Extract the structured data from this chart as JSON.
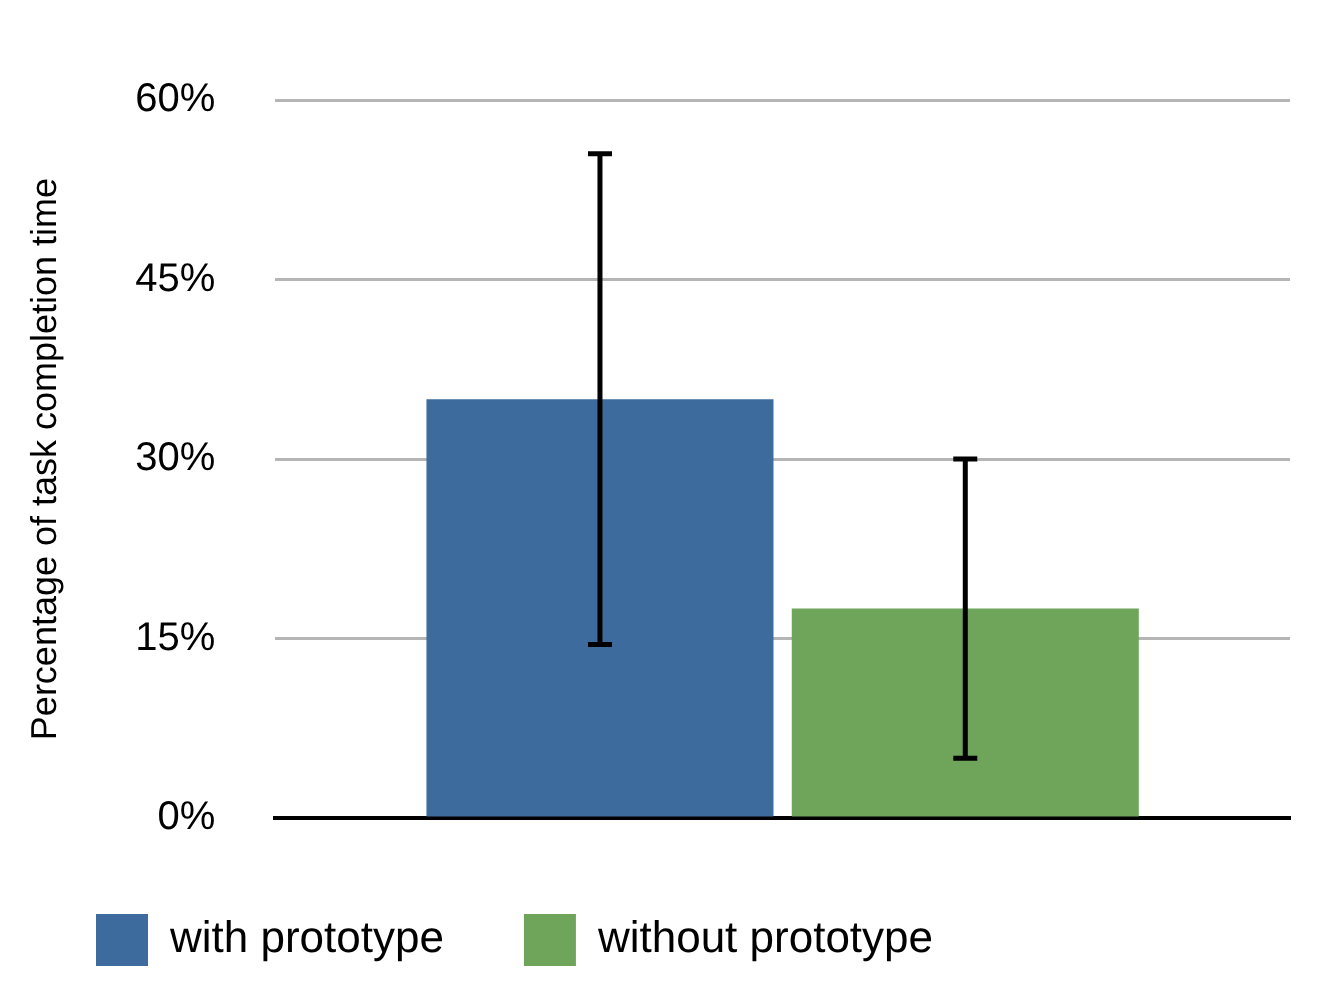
{
  "chart_data": {
    "type": "bar",
    "ylabel": "Percentage of task completion time",
    "categories": [
      null
    ],
    "series": [
      {
        "name": "with prototype",
        "color": "#3d6b9d",
        "values": [
          35
        ],
        "errors": [
          [
            14.5,
            55.5
          ]
        ]
      },
      {
        "name": "without prototype",
        "color": "#6ea55a",
        "values": [
          17.5
        ],
        "errors": [
          [
            5,
            30
          ]
        ]
      }
    ],
    "ylim": [
      0,
      60
    ],
    "yticks": [
      {
        "value": 0,
        "label": "0%"
      },
      {
        "value": 15,
        "label": "15%"
      },
      {
        "value": 30,
        "label": "30%"
      },
      {
        "value": 45,
        "label": "45%"
      },
      {
        "value": 60,
        "label": "60%"
      }
    ],
    "grid": "y",
    "legend": "bottom"
  }
}
